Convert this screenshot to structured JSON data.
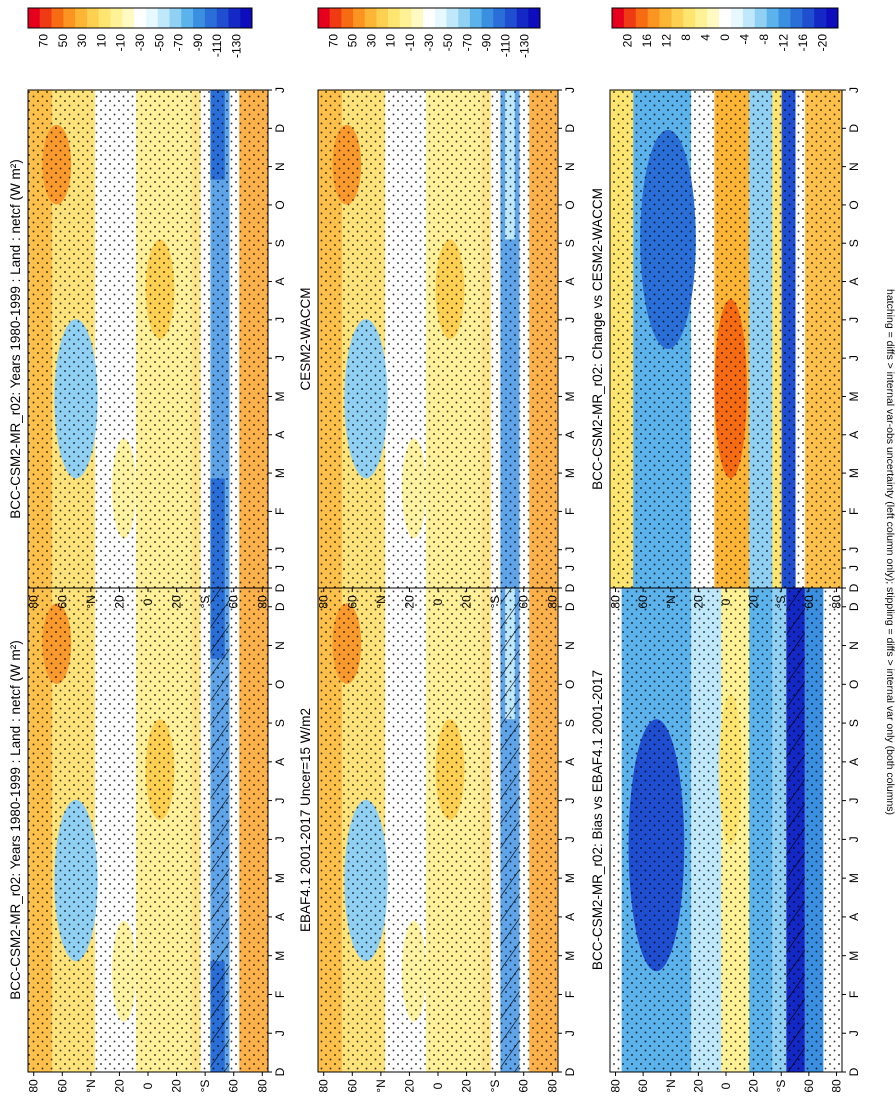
{
  "footer": {
    "caption": "hatching = diffs > internal var-obs uncertainty (left column only); stippling = diffs > internal var only (both columns)"
  },
  "colorbars": {
    "absolute": {
      "tick_labels": [
        "70",
        "50",
        "30",
        "10",
        "-10",
        "-30",
        "-50",
        "-70",
        "-90",
        "-110",
        "-130"
      ],
      "colors": [
        "#e6001e",
        "#f03a14",
        "#f76b13",
        "#fb9421",
        "#fdb535",
        "#fed052",
        "#fee570",
        "#fff296",
        "#fff9c2",
        "#ffffff",
        "#e8f8ff",
        "#bfe8fb",
        "#8fd0f3",
        "#5cb2ea",
        "#3a8fe0",
        "#2a6fd7",
        "#1f4ed0",
        "#1428c6",
        "#0d0dbd"
      ]
    },
    "difference": {
      "tick_labels": [
        "20",
        "16",
        "12",
        "8",
        "4",
        "0",
        "-4",
        "-8",
        "-12",
        "-16",
        "-20"
      ],
      "colors": [
        "#e6001e",
        "#f03a14",
        "#f76b13",
        "#fb9421",
        "#fdb535",
        "#fed052",
        "#fee570",
        "#fff296",
        "#fff9c2",
        "#ffffff",
        "#e8f8ff",
        "#bfe8fb",
        "#8fd0f3",
        "#5cb2ea",
        "#3a8fe0",
        "#2a6fd7",
        "#1f4ed0",
        "#1428c6",
        "#0d0dbd"
      ]
    }
  },
  "chart_data": [
    {
      "type": "heatmap",
      "title": "BCC-CSM2-MR_r02: Years 1980-1999 : Land : netcf (W m²)",
      "x_ticks": [
        "D",
        "J",
        "F",
        "M",
        "A",
        "M",
        "J",
        "J",
        "A",
        "S",
        "O",
        "N",
        "D",
        "J"
      ],
      "y_ticks": [
        "80",
        "60",
        "°N",
        "20",
        "0",
        "20",
        "°S",
        "60",
        "80"
      ],
      "colorbar": "absolute",
      "hatching": true,
      "stippling": true,
      "variant": "model"
    },
    {
      "type": "heatmap",
      "title": "BCC-CSM2-MR_r02: Years 1980-1999 : Land : netcf (W m²)",
      "x_ticks": [
        "D",
        "J",
        "F",
        "M",
        "A",
        "M",
        "J",
        "J",
        "A",
        "S",
        "O",
        "N",
        "D",
        "J"
      ],
      "y_ticks": [
        "80",
        "60",
        "°N",
        "20",
        "0",
        "20",
        "°S",
        "60",
        "80"
      ],
      "colorbar": "absolute",
      "hatching": false,
      "stippling": true,
      "variant": "model"
    },
    {
      "type": "heatmap",
      "title": "EBAF4.1 2001-2017 Uncer=15 W/m2",
      "x_ticks": [
        "D",
        "J",
        "F",
        "M",
        "A",
        "M",
        "J",
        "J",
        "A",
        "S",
        "O",
        "N",
        "D",
        "J"
      ],
      "y_ticks": [
        "80",
        "60",
        "°N",
        "20",
        "0",
        "20",
        "°S",
        "60",
        "80"
      ],
      "colorbar": "absolute",
      "hatching": true,
      "stippling": true,
      "variant": "obs"
    },
    {
      "type": "heatmap",
      "title": "CESM2-WACCM",
      "x_ticks": [
        "D",
        "J",
        "F",
        "M",
        "A",
        "M",
        "J",
        "J",
        "A",
        "S",
        "O",
        "N",
        "D",
        "J"
      ],
      "y_ticks": [
        "80",
        "60",
        "°N",
        "20",
        "0",
        "20",
        "°S",
        "60",
        "80"
      ],
      "colorbar": "absolute",
      "hatching": false,
      "stippling": true,
      "variant": "obs"
    },
    {
      "type": "heatmap",
      "title": "BCC-CSM2-MR_r02: Bias vs EBAF4.1 2001-2017",
      "x_ticks": [
        "D",
        "J",
        "F",
        "M",
        "A",
        "M",
        "J",
        "J",
        "A",
        "S",
        "O",
        "N",
        "D",
        "J"
      ],
      "y_ticks": [
        "80",
        "60",
        "°N",
        "20",
        "0",
        "20",
        "°S",
        "60",
        "80"
      ],
      "colorbar": "difference",
      "hatching": true,
      "stippling": true,
      "variant": "diff"
    },
    {
      "type": "heatmap",
      "title": "BCC-CSM2-MR_r02: Change vs CESM2-WACCM",
      "x_ticks": [
        "D",
        "J",
        "F",
        "M",
        "A",
        "M",
        "J",
        "J",
        "A",
        "S",
        "O",
        "N",
        "D",
        "J"
      ],
      "y_ticks": [
        "80",
        "60",
        "°N",
        "20",
        "0",
        "20",
        "°S",
        "60",
        "80"
      ],
      "colorbar": "difference",
      "hatching": false,
      "stippling": true,
      "variant": "diff2"
    }
  ]
}
